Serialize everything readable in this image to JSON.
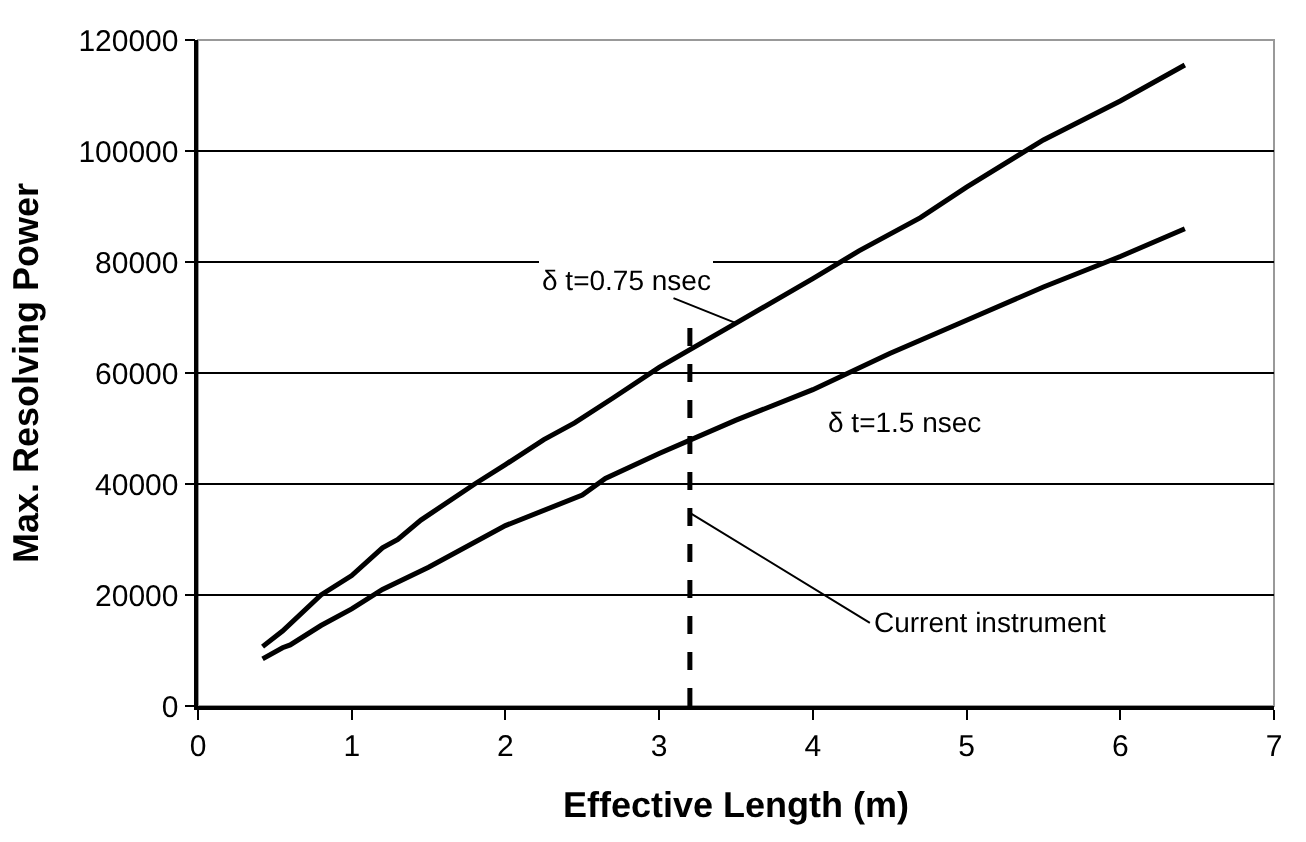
{
  "chart_data": {
    "type": "line",
    "xlabel": "Effective Length (m)",
    "ylabel": "Max. Resolving Power",
    "xlim": [
      0,
      7
    ],
    "xticks": [
      0,
      1,
      2,
      3,
      4,
      5,
      6,
      7
    ],
    "ylim": [
      0,
      120000
    ],
    "yticks": [
      0,
      20000,
      40000,
      60000,
      80000,
      100000,
      120000
    ],
    "grid": "y",
    "legend": false,
    "marker": "none",
    "line_style": "solid",
    "series": [
      {
        "name": "δ t=0.75 nsec",
        "color": "#000000",
        "x": [
          0.42,
          0.55,
          0.8,
          1.0,
          1.2,
          1.3,
          1.45,
          1.8,
          2.0,
          2.25,
          2.45,
          2.7,
          3.0,
          3.5,
          4.0,
          4.3,
          4.7,
          5.0,
          5.5,
          6.0,
          6.42
        ],
        "values": [
          10700,
          13500,
          20000,
          23500,
          28500,
          30000,
          33500,
          40000,
          43500,
          48000,
          51000,
          55500,
          61000,
          69000,
          77000,
          82000,
          88000,
          93500,
          102000,
          109000,
          115500
        ]
      },
      {
        "name": "δ t=1.5 nsec",
        "color": "#000000",
        "x": [
          0.42,
          0.55,
          0.6,
          0.8,
          1.0,
          1.2,
          1.5,
          2.0,
          2.5,
          2.65,
          3.0,
          3.5,
          4.0,
          4.5,
          5.0,
          5.5,
          6.0,
          6.42
        ],
        "values": [
          8500,
          10500,
          11000,
          14500,
          17500,
          21000,
          25000,
          32500,
          38000,
          41000,
          45500,
          51500,
          57000,
          63500,
          69500,
          75500,
          81000,
          86000
        ]
      }
    ],
    "ref_lines": [
      {
        "axis": "x",
        "value": 3.2,
        "label": "Current instrument",
        "color": "#000000",
        "line_style": "dashed"
      }
    ]
  }
}
